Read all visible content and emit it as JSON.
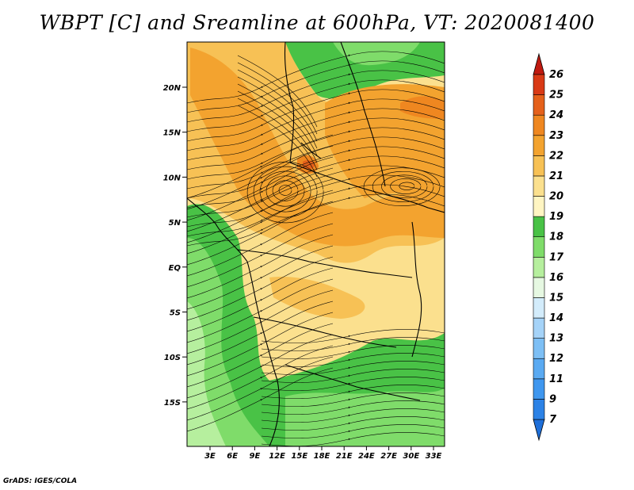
{
  "title": "WBPT [C] and Sreamline at 600hPa, VT: 2020081400",
  "credit": "GrADS: IGES/COLA",
  "map": {
    "lat_ticks": [
      "20N",
      "15N",
      "10N",
      "5N",
      "EQ",
      "5S",
      "10S",
      "15S"
    ],
    "lon_ticks": [
      "3E",
      "6E",
      "9E",
      "12E",
      "15E",
      "18E",
      "21E",
      "24E",
      "27E",
      "30E",
      "33E"
    ],
    "frame_color": "#000000",
    "streamline_color": "#000000",
    "border_color": "#000000"
  },
  "colorbar": {
    "levels": [
      "7",
      "9",
      "11",
      "12",
      "13",
      "14",
      "15",
      "16",
      "17",
      "18",
      "19",
      "20",
      "21",
      "22",
      "23",
      "24",
      "25",
      "26"
    ],
    "colors": [
      "#1e6fd9",
      "#2c82e6",
      "#3f97ef",
      "#5aaaf2",
      "#7dbff5",
      "#a5d3f8",
      "#d3ecfb",
      "#e6f8e2",
      "#b6ef9e",
      "#7fdc6a",
      "#49c246",
      "#fff5c2",
      "#fbe08e",
      "#f7c155",
      "#f3a32f",
      "#ef8720",
      "#e5611b",
      "#d93a16",
      "#c01a10"
    ],
    "arrow_low_color": "#1e6fd9",
    "arrow_high_color": "#c01a10"
  },
  "field": {
    "warm_core_colors": [
      "#f3a32f",
      "#ef8720",
      "#e5611b"
    ],
    "moist_colors": [
      "#49c246",
      "#7fdc6a",
      "#b6ef9e"
    ],
    "mid_colors": [
      "#fbe08e",
      "#f7c155"
    ]
  }
}
